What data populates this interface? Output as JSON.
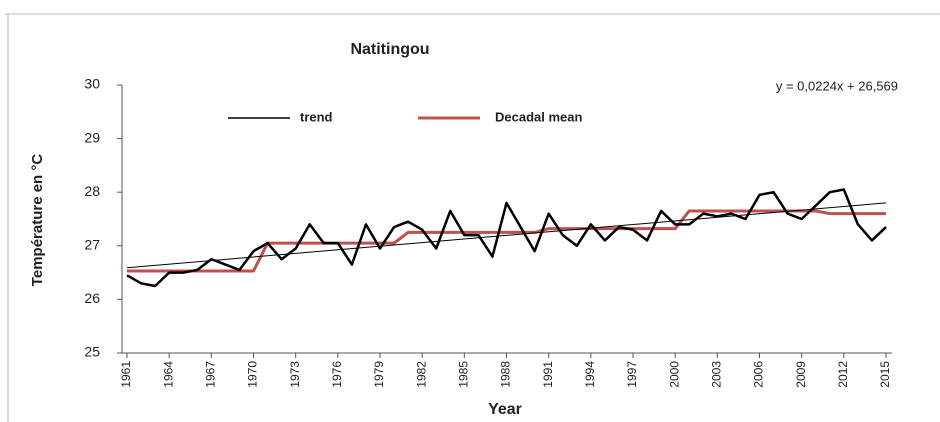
{
  "chart_data": {
    "type": "line",
    "title": "Natitingou",
    "xlabel": "Year",
    "ylabel": "Température en °C",
    "annotation": "y = 0,0224x + 26,569",
    "x": [
      1961,
      1962,
      1963,
      1964,
      1965,
      1966,
      1967,
      1968,
      1969,
      1970,
      1971,
      1972,
      1973,
      1974,
      1975,
      1976,
      1977,
      1978,
      1979,
      1980,
      1981,
      1982,
      1983,
      1984,
      1985,
      1986,
      1987,
      1988,
      1989,
      1990,
      1991,
      1992,
      1993,
      1994,
      1995,
      1996,
      1997,
      1998,
      1999,
      2000,
      2001,
      2002,
      2003,
      2004,
      2005,
      2006,
      2007,
      2008,
      2009,
      2010,
      2011,
      2012,
      2013,
      2014,
      2015
    ],
    "series": [
      {
        "name": "Decadal mean",
        "color": "#c0504d",
        "values": [
          26.53,
          26.53,
          26.53,
          26.53,
          26.53,
          26.53,
          26.53,
          26.53,
          26.53,
          26.53,
          27.05,
          27.05,
          27.05,
          27.05,
          27.05,
          27.05,
          27.05,
          27.05,
          27.05,
          27.05,
          27.25,
          27.25,
          27.25,
          27.25,
          27.25,
          27.25,
          27.25,
          27.25,
          27.25,
          27.25,
          27.32,
          27.32,
          27.32,
          27.32,
          27.32,
          27.32,
          27.32,
          27.32,
          27.32,
          27.32,
          27.65,
          27.65,
          27.65,
          27.65,
          27.65,
          27.65,
          27.65,
          27.65,
          27.65,
          27.65,
          27.6,
          27.6,
          27.6,
          27.6,
          27.6
        ]
      },
      {
        "color": "#000000",
        "values": [
          26.45,
          26.3,
          26.25,
          26.5,
          26.5,
          26.55,
          26.75,
          26.65,
          26.55,
          26.9,
          27.05,
          26.75,
          26.95,
          27.4,
          27.05,
          27.05,
          26.65,
          27.4,
          26.95,
          27.35,
          27.45,
          27.3,
          26.95,
          27.65,
          27.2,
          27.2,
          26.8,
          27.8,
          27.35,
          26.9,
          27.6,
          27.2,
          27.0,
          27.4,
          27.1,
          27.35,
          27.3,
          27.1,
          27.65,
          27.4,
          27.4,
          27.6,
          27.55,
          27.6,
          27.5,
          27.95,
          28.0,
          27.6,
          27.5,
          27.75,
          28.0,
          28.05,
          27.4,
          27.1,
          27.35
        ]
      },
      {
        "name": "trend",
        "color": "#000000",
        "x": [
          1961,
          2015
        ],
        "values": [
          26.59,
          27.8
        ]
      }
    ],
    "xlim": [
      1961,
      2015
    ],
    "xticks": [
      1961,
      1964,
      1967,
      1970,
      1973,
      1976,
      1979,
      1982,
      1985,
      1988,
      1991,
      1994,
      1997,
      2000,
      2003,
      2006,
      2009,
      2012,
      2015
    ],
    "ylim": [
      25,
      30
    ],
    "yticks": [
      25,
      26,
      27,
      28,
      29,
      30
    ]
  }
}
